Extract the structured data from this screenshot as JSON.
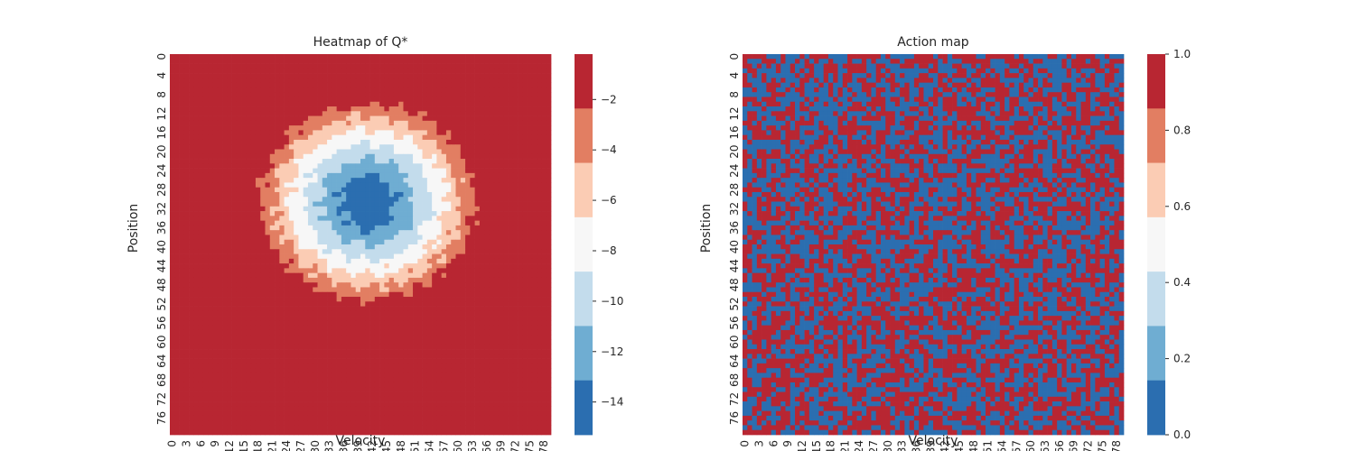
{
  "chart_data": [
    {
      "type": "heatmap",
      "title": "Heatmap of Q*",
      "xlabel": "Velocity",
      "ylabel": "Position",
      "grid_size": [
        80,
        80
      ],
      "x_tick_labels": [
        "0",
        "3",
        "6",
        "9",
        "12",
        "15",
        "18",
        "21",
        "24",
        "27",
        "30",
        "33",
        "36",
        "39",
        "42",
        "45",
        "48",
        "51",
        "54",
        "57",
        "60",
        "63",
        "66",
        "69",
        "72",
        "75",
        "78"
      ],
      "y_tick_labels": [
        "0",
        "4",
        "8",
        "12",
        "16",
        "20",
        "24",
        "28",
        "32",
        "36",
        "40",
        "44",
        "48",
        "52",
        "56",
        "60",
        "64",
        "68",
        "72",
        "76"
      ],
      "value_field": {
        "shape": "radial-bowl",
        "center": [
          41,
          30.5
        ],
        "radius": [
          25,
          23
        ],
        "min_value": -15.3,
        "max_value": -0.2,
        "saturates_at_max": true
      },
      "colorbar": {
        "range": [
          -15.3,
          -0.2
        ],
        "levels": 7,
        "tick_labels": [
          "-2",
          "-4",
          "-6",
          "-8",
          "-10",
          "-12",
          "-14"
        ],
        "tick_values": [
          -2,
          -4,
          -6,
          -8,
          -10,
          -12,
          -14
        ],
        "colors": [
          "#2b6eb0",
          "#6fadd2",
          "#c3dcec",
          "#f7f7f7",
          "#fbccb4",
          "#e27e62",
          "#b82632"
        ]
      }
    },
    {
      "type": "heatmap",
      "title": "Action map",
      "xlabel": "Velocity",
      "ylabel": "Position",
      "grid_size": [
        80,
        80
      ],
      "x_tick_labels": [
        "0",
        "3",
        "6",
        "9",
        "12",
        "15",
        "18",
        "21",
        "24",
        "27",
        "30",
        "33",
        "36",
        "39",
        "42",
        "45",
        "48",
        "51",
        "54",
        "57",
        "60",
        "63",
        "66",
        "69",
        "72",
        "75",
        "78"
      ],
      "y_tick_labels": [
        "0",
        "4",
        "8",
        "12",
        "16",
        "20",
        "24",
        "28",
        "32",
        "36",
        "40",
        "44",
        "48",
        "52",
        "56",
        "60",
        "64",
        "68",
        "72",
        "76"
      ],
      "values_description": "binary 0/1 per cell, approx. random",
      "value_colors": {
        "0": "#2b6eb0",
        "1": "#b82632"
      },
      "colorbar": {
        "range": [
          0.0,
          1.0
        ],
        "levels": 7,
        "tick_labels": [
          "1.0",
          "0.8",
          "0.6",
          "0.4",
          "0.2",
          "0.0"
        ],
        "tick_values": [
          1.0,
          0.8,
          0.6,
          0.4,
          0.2,
          0.0
        ],
        "colors": [
          "#2b6eb0",
          "#6fadd2",
          "#c3dcec",
          "#f7f7f7",
          "#fbccb4",
          "#e27e62",
          "#b82632"
        ]
      }
    }
  ]
}
